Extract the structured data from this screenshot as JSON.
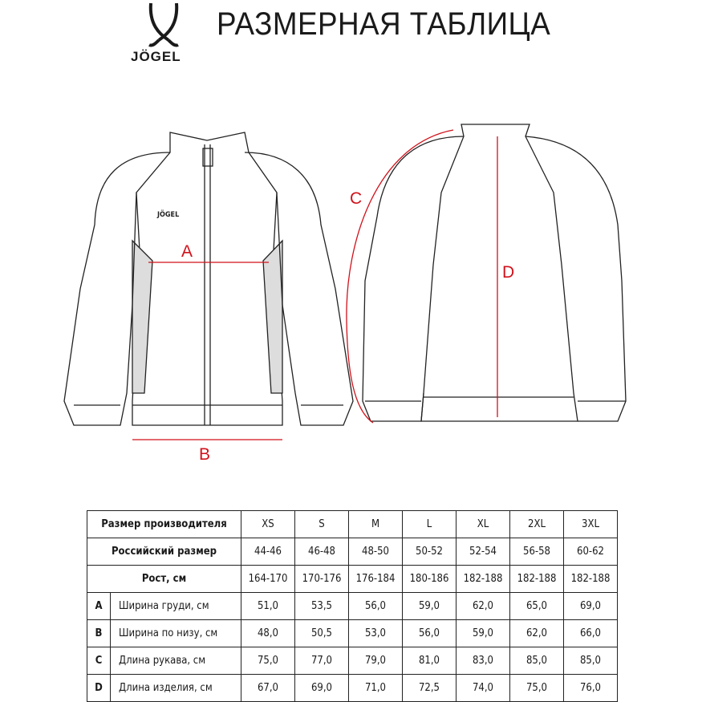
{
  "header": {
    "title": "РАЗМЕРНАЯ ТАБЛИЦА",
    "brand": "JÖGEL"
  },
  "diagram": {
    "labels": {
      "a": "A",
      "b": "B",
      "c": "C",
      "d": "D"
    },
    "accent": "#d0121b",
    "chest_logo": "JÖGEL"
  },
  "table": {
    "sizes_label": "Размер производителя",
    "sizes": [
      "XS",
      "S",
      "M",
      "L",
      "XL",
      "2XL",
      "3XL"
    ],
    "russian_label": "Российский размер",
    "russian": [
      "44-46",
      "46-48",
      "48-50",
      "50-52",
      "52-54",
      "56-58",
      "60-62"
    ],
    "height_label": "Рост, см",
    "height": [
      "164-170",
      "170-176",
      "176-184",
      "180-186",
      "182-188",
      "182-188",
      "182-188"
    ],
    "measurements": [
      {
        "letter": "A",
        "label": "Ширина груди, см",
        "values": [
          "51,0",
          "53,5",
          "56,0",
          "59,0",
          "62,0",
          "65,0",
          "69,0"
        ]
      },
      {
        "letter": "B",
        "label": "Ширина по низу, см",
        "values": [
          "48,0",
          "50,5",
          "53,0",
          "56,0",
          "59,0",
          "62,0",
          "66,0"
        ]
      },
      {
        "letter": "C",
        "label": "Длина рукава, см",
        "values": [
          "75,0",
          "77,0",
          "79,0",
          "81,0",
          "83,0",
          "85,0",
          "85,0"
        ]
      },
      {
        "letter": "D",
        "label": "Длина изделия, см",
        "values": [
          "67,0",
          "69,0",
          "71,0",
          "72,5",
          "74,0",
          "75,0",
          "76,0"
        ]
      }
    ]
  }
}
